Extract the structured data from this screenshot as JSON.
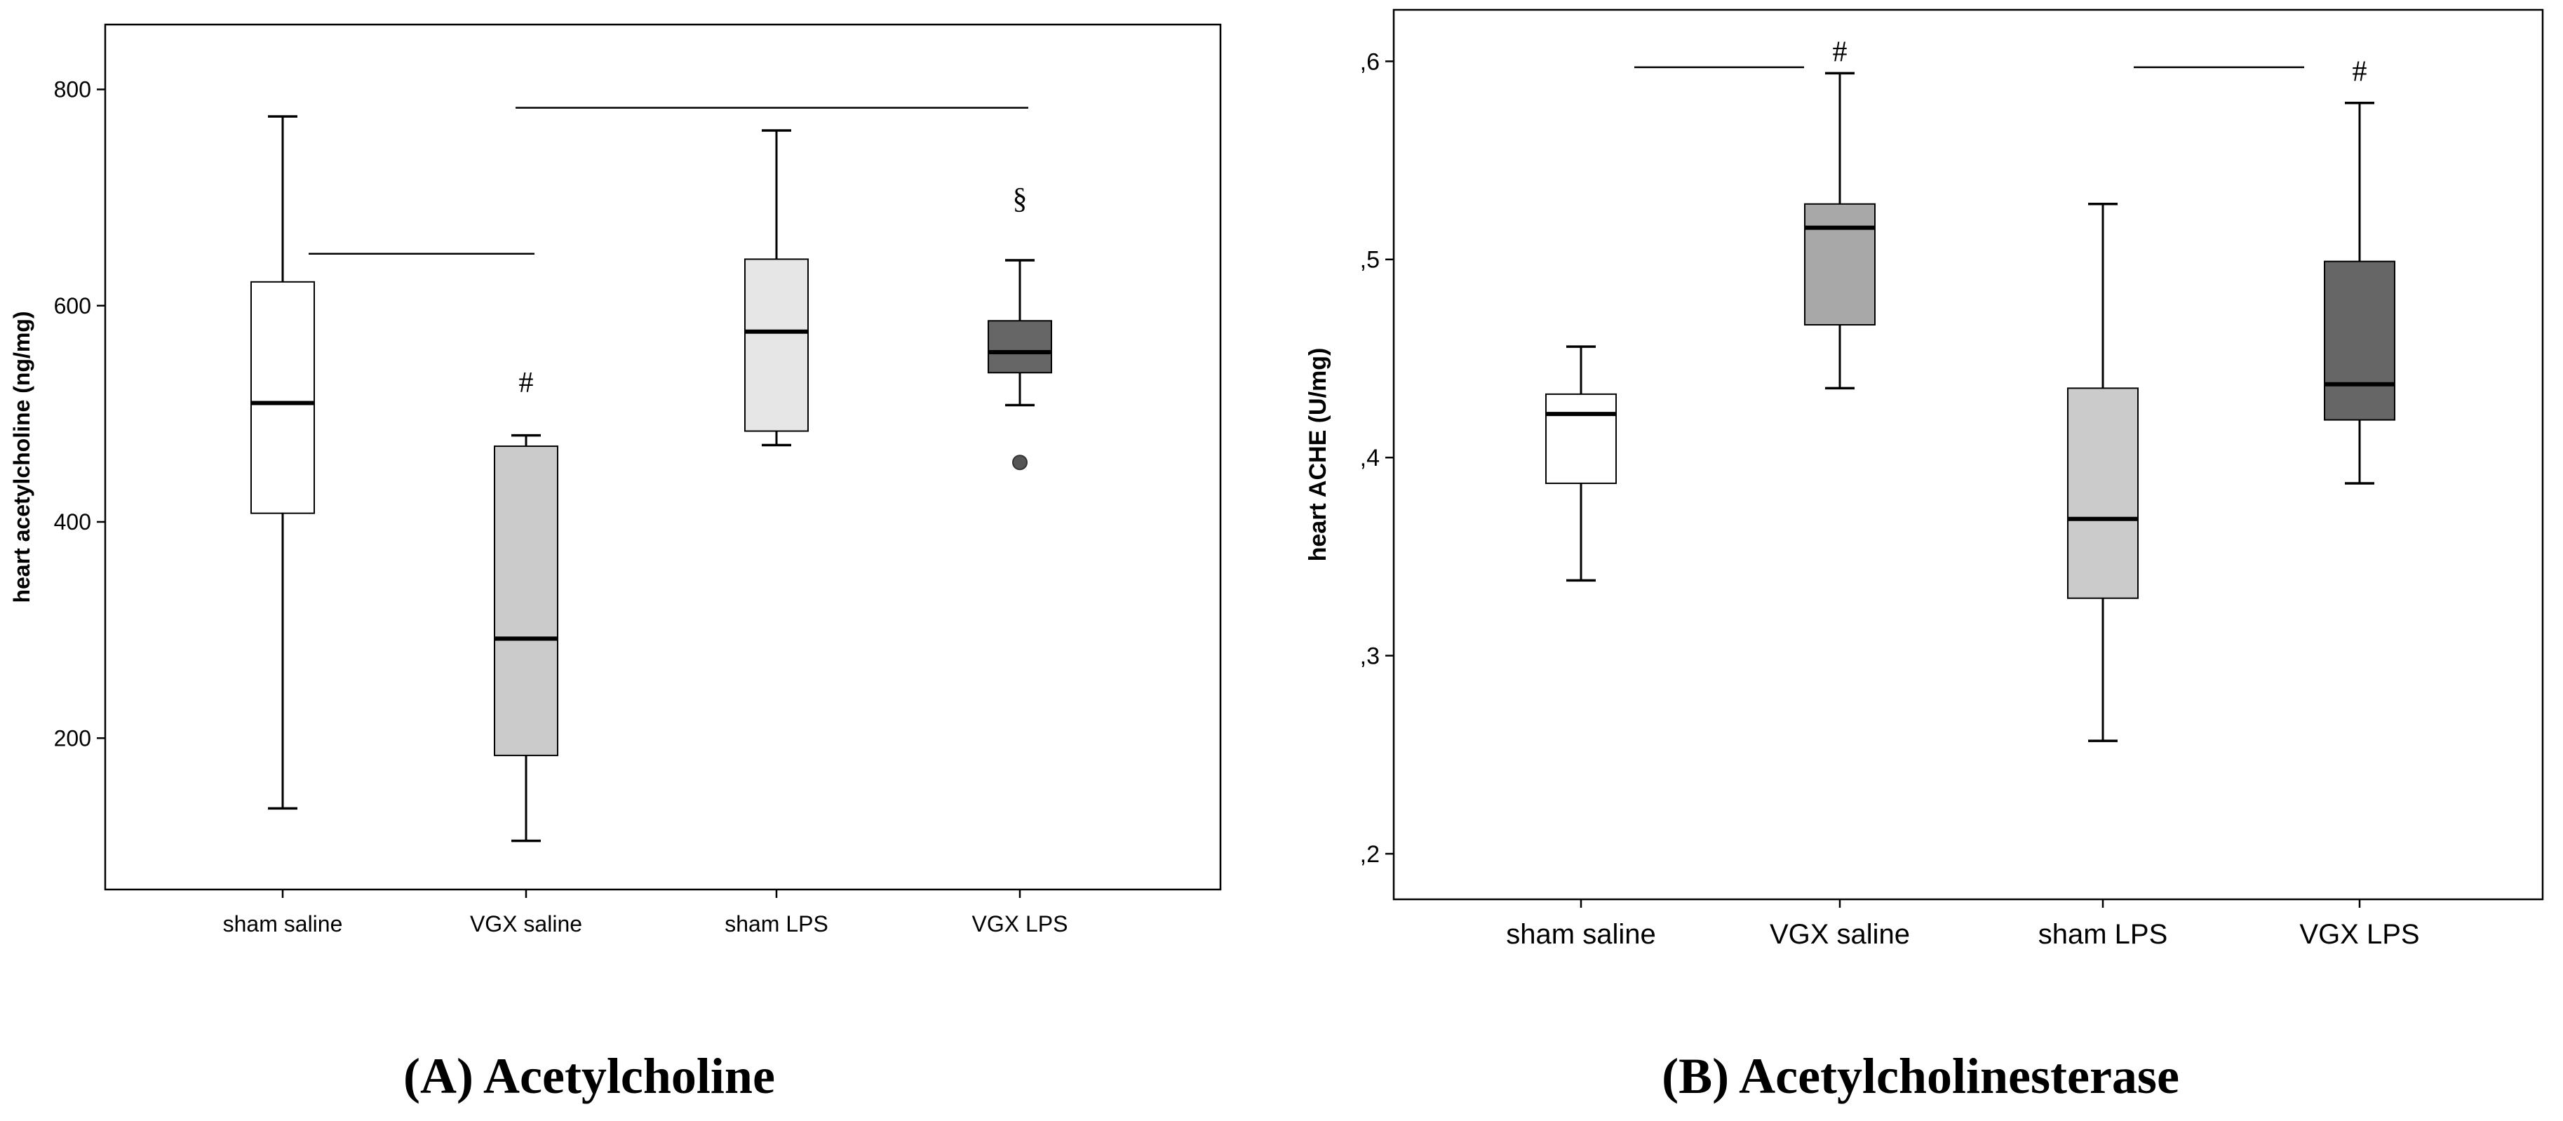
{
  "chart_data": [
    {
      "type": "box",
      "caption": "Acetylcholine",
      "caption_prefix": "(A)",
      "ylabel": "heart acetylcholine (ng/mg)",
      "xlabel": "",
      "ylim": [
        60,
        860
      ],
      "yticks": [
        200,
        400,
        600,
        800
      ],
      "ytick_labels": [
        "200",
        "400",
        "600",
        "800"
      ],
      "categories": [
        "sham saline",
        "VGX saline",
        "sham LPS",
        "VGX LPS"
      ],
      "colors": [
        "#ffffff",
        "#cbcbcb",
        "#e6e6e6",
        "#666666"
      ],
      "boxes": [
        {
          "min": 135,
          "q1": 408,
          "median": 510,
          "q3": 622,
          "max": 775
        },
        {
          "min": 105,
          "q1": 184,
          "median": 292,
          "q3": 470,
          "max": 480
        },
        {
          "min": 471,
          "q1": 484,
          "median": 576,
          "q3": 643,
          "max": 762
        },
        {
          "min": 508,
          "q1": 538,
          "median": 557,
          "q3": 586,
          "max": 642
        }
      ],
      "outliers": [
        {
          "category": "VGX LPS",
          "value": 455
        }
      ],
      "brackets": [
        {
          "from": "sham saline",
          "to": "VGX saline",
          "value": 648
        },
        {
          "from": "VGX saline",
          "to": "VGX LPS",
          "value": 783
        }
      ],
      "markers": [
        {
          "category": "VGX saline",
          "label": "#",
          "value": 520
        },
        {
          "category": "VGX LPS",
          "label": "§",
          "value": 690
        }
      ]
    },
    {
      "type": "box",
      "caption": "Acetylcholinesterase",
      "caption_prefix": "(B)",
      "ylabel": "heart ACHE (U/mg)",
      "xlabel": "",
      "ylim": [
        0.177,
        0.626
      ],
      "yticks": [
        0.2,
        0.3,
        0.4,
        0.5,
        0.6
      ],
      "ytick_labels": [
        ",2",
        ",3",
        ",4",
        ",5",
        ",6"
      ],
      "categories": [
        "sham saline",
        "VGX saline",
        "sham LPS",
        "VGX LPS"
      ],
      "colors": [
        "#ffffff",
        "#a8a8a8",
        "#cbcbcb",
        "#666666"
      ],
      "boxes": [
        {
          "min": 0.338,
          "q1": 0.387,
          "median": 0.422,
          "q3": 0.432,
          "max": 0.456
        },
        {
          "min": 0.435,
          "q1": 0.467,
          "median": 0.516,
          "q3": 0.528,
          "max": 0.594
        },
        {
          "min": 0.257,
          "q1": 0.329,
          "median": 0.369,
          "q3": 0.435,
          "max": 0.528
        },
        {
          "min": 0.387,
          "q1": 0.419,
          "median": 0.437,
          "q3": 0.499,
          "max": 0.579
        }
      ],
      "outliers": [],
      "brackets": [
        {
          "from": "sham saline",
          "to": "VGX saline",
          "value": 0.597,
          "span": "partial"
        },
        {
          "from": "sham LPS",
          "to": "VGX LPS",
          "value": 0.597,
          "span": "partial"
        }
      ],
      "markers": [
        {
          "category": "VGX saline",
          "label": "#",
          "value": 0.6
        },
        {
          "category": "VGX LPS",
          "label": "#",
          "value": 0.59
        }
      ]
    }
  ]
}
